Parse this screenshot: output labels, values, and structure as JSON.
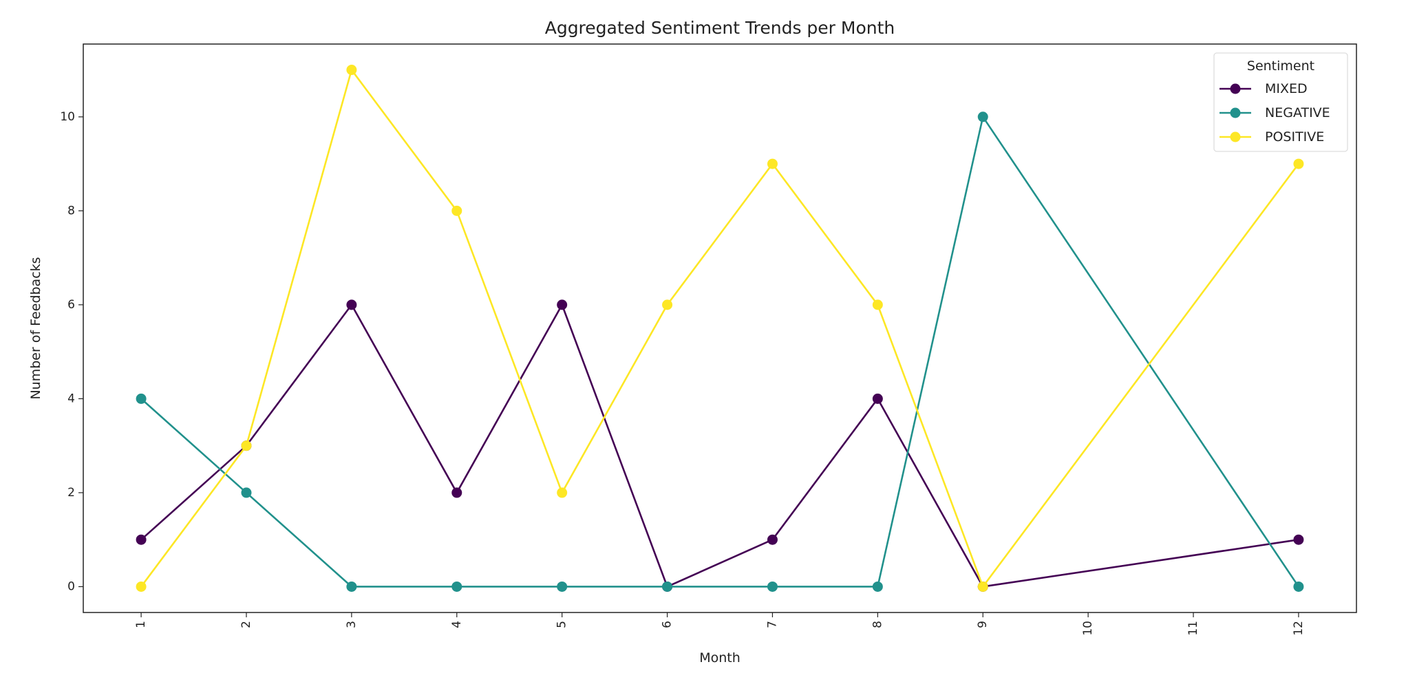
{
  "chart_data": {
    "type": "line",
    "title": "Aggregated Sentiment Trends per Month",
    "xlabel": "Month",
    "ylabel": "Number of Feedbacks",
    "x_ticks": [
      1,
      2,
      3,
      4,
      5,
      6,
      7,
      8,
      9,
      10,
      11,
      12
    ],
    "y_ticks": [
      0,
      2,
      4,
      6,
      8,
      10
    ],
    "xlim": [
      0.45,
      12.55
    ],
    "ylim": [
      -0.55,
      11.55
    ],
    "grid": false,
    "legend": {
      "title": "Sentiment",
      "placement": "top-right"
    },
    "x": [
      1,
      2,
      3,
      4,
      5,
      6,
      7,
      8,
      9,
      12
    ],
    "series": [
      {
        "name": "MIXED",
        "color": "#440154",
        "values": [
          1,
          3,
          6,
          2,
          6,
          0,
          1,
          4,
          0,
          1
        ]
      },
      {
        "name": "NEGATIVE",
        "color": "#21918c",
        "values": [
          4,
          2,
          0,
          0,
          0,
          0,
          0,
          0,
          10,
          0
        ]
      },
      {
        "name": "POSITIVE",
        "color": "#fde725",
        "values": [
          0,
          3,
          11,
          8,
          2,
          6,
          9,
          6,
          0,
          9
        ]
      }
    ]
  }
}
